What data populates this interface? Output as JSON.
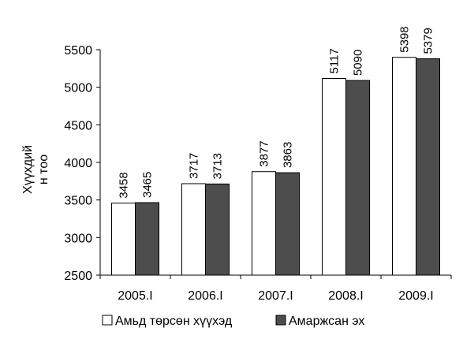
{
  "chart_data": {
    "type": "bar",
    "title": "",
    "ylabel_lines": [
      "Хүүхдий",
      "н тоо"
    ],
    "xlabel": "",
    "categories": [
      "2005.I",
      "2006.I",
      "2007.I",
      "2008.I",
      "2009.I"
    ],
    "series": [
      {
        "name": "Амьд төрсөн хүүхэд",
        "values": [
          3458,
          3717,
          3877,
          5117,
          5398
        ],
        "color": "#ffffff"
      },
      {
        "name": "Амаржсан эх",
        "values": [
          3465,
          3713,
          3863,
          5090,
          5379
        ],
        "color": "#4d4d4d"
      }
    ],
    "ylim": [
      2500,
      5500
    ],
    "yticks": [
      "2500",
      "3000",
      "3500",
      "4000",
      "4500",
      "5000",
      "5500"
    ],
    "data_labels": true,
    "grid": false,
    "legend_position": "bottom"
  }
}
